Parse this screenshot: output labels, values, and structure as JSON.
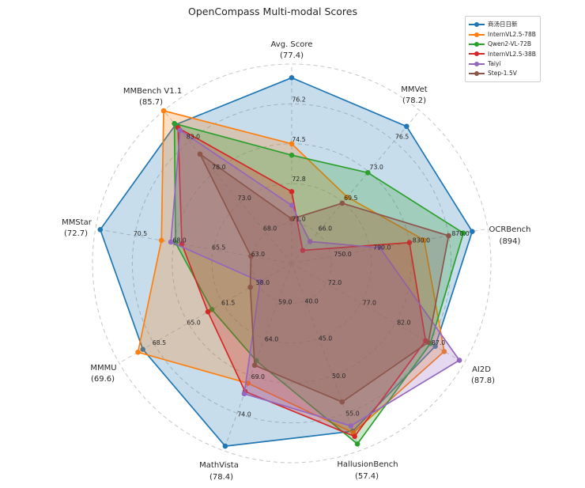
{
  "chart_data": {
    "type": "radar",
    "title": "OpenCompass Multi-modal Scores",
    "legend_position": "upper right",
    "grid": "dashed-circles",
    "grid_color": "#c6c6c6",
    "text_color": "#262626",
    "axes": [
      {
        "name": "Avg. Score",
        "score_label": "(77.4)",
        "ticks": [
          "71.0",
          "72.8",
          "74.5",
          "76.2"
        ],
        "range": [
          69.25,
          78.0
        ]
      },
      {
        "name": "MMVet",
        "score_label": "(78.2)",
        "ticks": [
          "66.0",
          "69.5",
          "73.0",
          "76.5"
        ],
        "range": [
          62.5,
          80.0
        ]
      },
      {
        "name": "OCRBench",
        "score_label": "(894)",
        "ticks": [
          "750.0",
          "790.0",
          "830.0",
          "870.0"
        ],
        "range": [
          710,
          910
        ]
      },
      {
        "name": "AI2D",
        "score_label": "(87.8)",
        "ticks": [
          "72.0",
          "77.0",
          "82.0",
          "87.0"
        ],
        "range": [
          67,
          92
        ]
      },
      {
        "name": "HallusionBench",
        "score_label": "(57.4)",
        "ticks": [
          "40.0",
          "45.0",
          "50.0",
          "55.0"
        ],
        "range": [
          35,
          60
        ]
      },
      {
        "name": "MathVista",
        "score_label": "(78.4)",
        "ticks": [
          "59.0",
          "64.0",
          "69.0",
          "74.0"
        ],
        "range": [
          54,
          79
        ]
      },
      {
        "name": "MMMU",
        "score_label": "(69.6)",
        "ticks": [
          "58.0",
          "61.5",
          "65.0",
          "68.5"
        ],
        "range": [
          54.5,
          72.0
        ]
      },
      {
        "name": "MMStar",
        "score_label": "(72.7)",
        "ticks": [
          "63.0",
          "65.5",
          "68.0",
          "70.5"
        ],
        "range": [
          60.5,
          73.0
        ]
      },
      {
        "name": "MMBench V1.1",
        "score_label": "(85.7)",
        "ticks": [
          "68.0",
          "73.0",
          "78.0",
          "83.0"
        ],
        "range": [
          63,
          88
        ]
      }
    ],
    "series": [
      {
        "name": "商汤日日新",
        "color": "#1f77b4",
        "values": [
          77.4,
          78.2,
          894,
          87.8,
          57.4,
          78.4,
          69.6,
          72.7,
          85.7
        ]
      },
      {
        "name": "InternVL2.5-78B",
        "color": "#ff7f0e",
        "values": [
          74.5,
          70.1,
          845,
          89.1,
          57.6,
          70.0,
          70.1,
          68.8,
          88.0
        ]
      },
      {
        "name": "Qwen2-VL-72B",
        "color": "#2ca02c",
        "values": [
          74.0,
          72.9,
          885,
          87.1,
          59.1,
          67.0,
          62.6,
          67.9,
          85.9
        ]
      },
      {
        "name": "InternVL2.5-38B",
        "color": "#d62728",
        "values": [
          72.4,
          64.0,
          830,
          86.4,
          58.1,
          71.1,
          63.0,
          67.5,
          85.2
        ]
      },
      {
        "name": "Taiyi",
        "color": "#9467bd",
        "values": [
          71.8,
          65.0,
          800,
          91.3,
          56.7,
          71.4,
          57.7,
          68.2,
          84.8
        ]
      },
      {
        "name": "Step-1.5V",
        "color": "#8c564b",
        "values": [
          71.2,
          69.4,
          870,
          86.8,
          53.5,
          67.6,
          58.7,
          63.1,
          80.9
        ]
      }
    ]
  }
}
